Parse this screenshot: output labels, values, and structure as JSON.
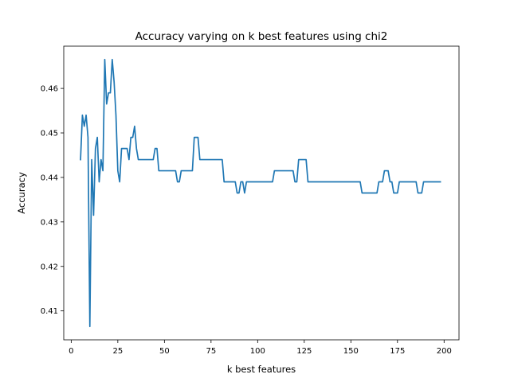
{
  "chart_data": {
    "type": "line",
    "title": "Accuracy varying on k best features using chi2",
    "xlabel": "k best features",
    "ylabel": "Accuracy",
    "xlim": [
      -4,
      208
    ],
    "ylim": [
      0.4035,
      0.4695
    ],
    "xticks": [
      0,
      25,
      50,
      75,
      100,
      125,
      150,
      175,
      200
    ],
    "yticks": [
      0.41,
      0.42,
      0.43,
      0.44,
      0.45,
      0.46
    ],
    "ytick_labels": [
      "0.41",
      "0.42",
      "0.43",
      "0.44",
      "0.45",
      "0.46"
    ],
    "grid": false,
    "series": [
      {
        "color": "#1f77b4",
        "x": [
          5,
          6,
          7,
          8,
          9,
          10,
          11,
          12,
          13,
          14,
          15,
          16,
          17,
          18,
          19,
          20,
          21,
          22,
          23,
          24,
          25,
          26,
          27,
          28,
          29,
          30,
          31,
          32,
          33,
          34,
          35,
          36,
          37,
          38,
          44,
          45,
          46,
          47,
          48,
          56,
          57,
          58,
          59,
          65,
          66,
          67,
          68,
          69,
          81,
          82,
          83,
          84,
          88,
          89,
          90,
          91,
          92,
          93,
          94,
          95,
          96,
          97,
          98,
          99,
          108,
          109,
          110,
          119,
          120,
          121,
          122,
          123,
          124,
          125,
          126,
          127,
          155,
          156,
          157,
          164,
          165,
          166,
          167,
          168,
          169,
          170,
          171,
          172,
          173,
          174,
          175,
          176,
          177,
          178,
          184,
          185,
          186,
          187,
          188,
          189,
          198
        ],
        "y": [
          0.444,
          0.454,
          0.4515,
          0.454,
          0.449,
          0.4065,
          0.444,
          0.4315,
          0.4465,
          0.449,
          0.439,
          0.444,
          0.4415,
          0.4665,
          0.4565,
          0.459,
          0.459,
          0.4665,
          0.4615,
          0.454,
          0.4415,
          0.439,
          0.4465,
          0.4465,
          0.4465,
          0.4465,
          0.444,
          0.449,
          0.449,
          0.4515,
          0.4465,
          0.444,
          0.444,
          0.444,
          0.444,
          0.4465,
          0.4465,
          0.4415,
          0.4415,
          0.4415,
          0.439,
          0.439,
          0.4415,
          0.4415,
          0.449,
          0.449,
          0.449,
          0.444,
          0.444,
          0.439,
          0.439,
          0.439,
          0.439,
          0.4365,
          0.4365,
          0.439,
          0.439,
          0.4365,
          0.439,
          0.439,
          0.439,
          0.439,
          0.439,
          0.439,
          0.439,
          0.4415,
          0.4415,
          0.4415,
          0.439,
          0.439,
          0.444,
          0.444,
          0.444,
          0.444,
          0.444,
          0.439,
          0.439,
          0.4365,
          0.4365,
          0.4365,
          0.439,
          0.439,
          0.439,
          0.4415,
          0.4415,
          0.4415,
          0.439,
          0.439,
          0.4365,
          0.4365,
          0.4365,
          0.439,
          0.439,
          0.439,
          0.439,
          0.439,
          0.4365,
          0.4365,
          0.4365,
          0.439,
          0.439
        ]
      }
    ]
  }
}
